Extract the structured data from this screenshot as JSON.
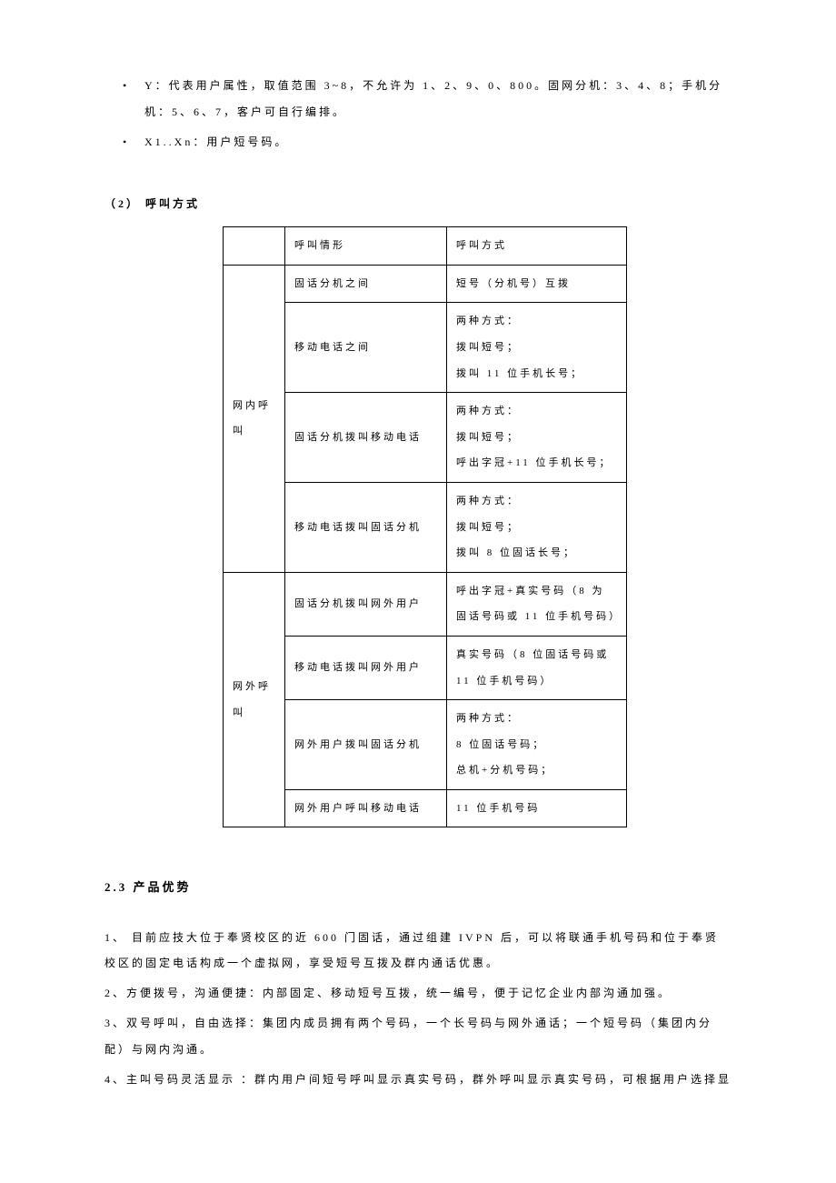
{
  "bullets": {
    "item1": "Y：代表用户属性，取值范围 3~8，不允许为 1、2、9、0、800。固网分机：3、4、8；手机分机：5、6、7，客户可自行编排。",
    "item2": "X1..Xn：用户短号码。"
  },
  "heading1": "（2） 呼叫方式",
  "table": {
    "header": {
      "c1": "呼叫情形",
      "c2": "呼叫方式"
    },
    "group1_label": "网内呼叫",
    "group2_label": "网外呼叫",
    "r1": {
      "c1": "固话分机之间",
      "c2": "短号（分机号）互拨"
    },
    "r2": {
      "c1": "移动电话之间",
      "c2": "两种方式：\n拨叫短号；\n拨叫 11 位手机长号；"
    },
    "r3": {
      "c1": "固话分机拨叫移动电话",
      "c2": "两种方式：\n拨叫短号；\n呼出字冠+11 位手机长号；"
    },
    "r4": {
      "c1": "移动电话拨叫固话分机",
      "c2": "两种方式：\n拨叫短号；\n拨叫 8 位固话长号；"
    },
    "r5": {
      "c1": "固话分机拨叫网外用户",
      "c2": "呼出字冠+真实号码（8 为固话号码或 11 位手机号码）"
    },
    "r6": {
      "c1": "移动电话拨叫网外用户",
      "c2": "真实号码（8 位固话号码或 11 位手机号码）"
    },
    "r7": {
      "c1": "网外用户拨叫固话分机",
      "c2": "两种方式：\n8 位固话号码；\n总机+分机号码；"
    },
    "r8": {
      "c1": "网外用户呼叫移动电话",
      "c2": "11 位手机号码"
    }
  },
  "heading2": "2.3 产品优势",
  "paras": {
    "p1": "1、 目前应技大位于奉贤校区的近 600 门固话，通过组建 IVPN 后，可以将联通手机号码和位于奉贤校区的固定电话构成一个虚拟网，享受短号互拨及群内通话优惠。",
    "p2": "2、方便拨号，沟通便捷：内部固定、移动短号互拨，统一编号，便于记忆企业内部沟通加强。",
    "p3": "3、双号呼叫，自由选择：集团内成员拥有两个号码，一个长号码与网外通话；一个短号码（集团内分配）与网内沟通。",
    "p4": "4、主叫号码灵活显示 ：群内用户间短号呼叫显示真实号码，群外呼叫显示真实号码，可根据用户选择显"
  }
}
